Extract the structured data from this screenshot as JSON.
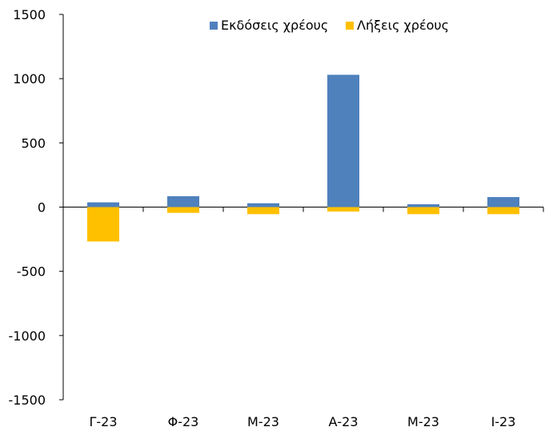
{
  "chart_data": {
    "type": "bar",
    "categories": [
      "Γ-23",
      "Φ-23",
      "Μ-23",
      "Α-23",
      "Μ-23",
      "Ι-23"
    ],
    "series": [
      {
        "name": "Εκδόσεις χρέους",
        "color": "#4F81BD",
        "values": [
          37,
          85,
          30,
          1030,
          22,
          78
        ]
      },
      {
        "name": "Λήξεις χρέους",
        "color": "#FFC000",
        "values": [
          -268,
          -45,
          -55,
          -35,
          -55,
          -55
        ]
      }
    ],
    "ylim": [
      -1500,
      1500
    ],
    "yticks": [
      1500,
      1000,
      500,
      0,
      -500,
      -1000,
      -1500
    ],
    "grid": false,
    "legend_position": "top-right"
  }
}
